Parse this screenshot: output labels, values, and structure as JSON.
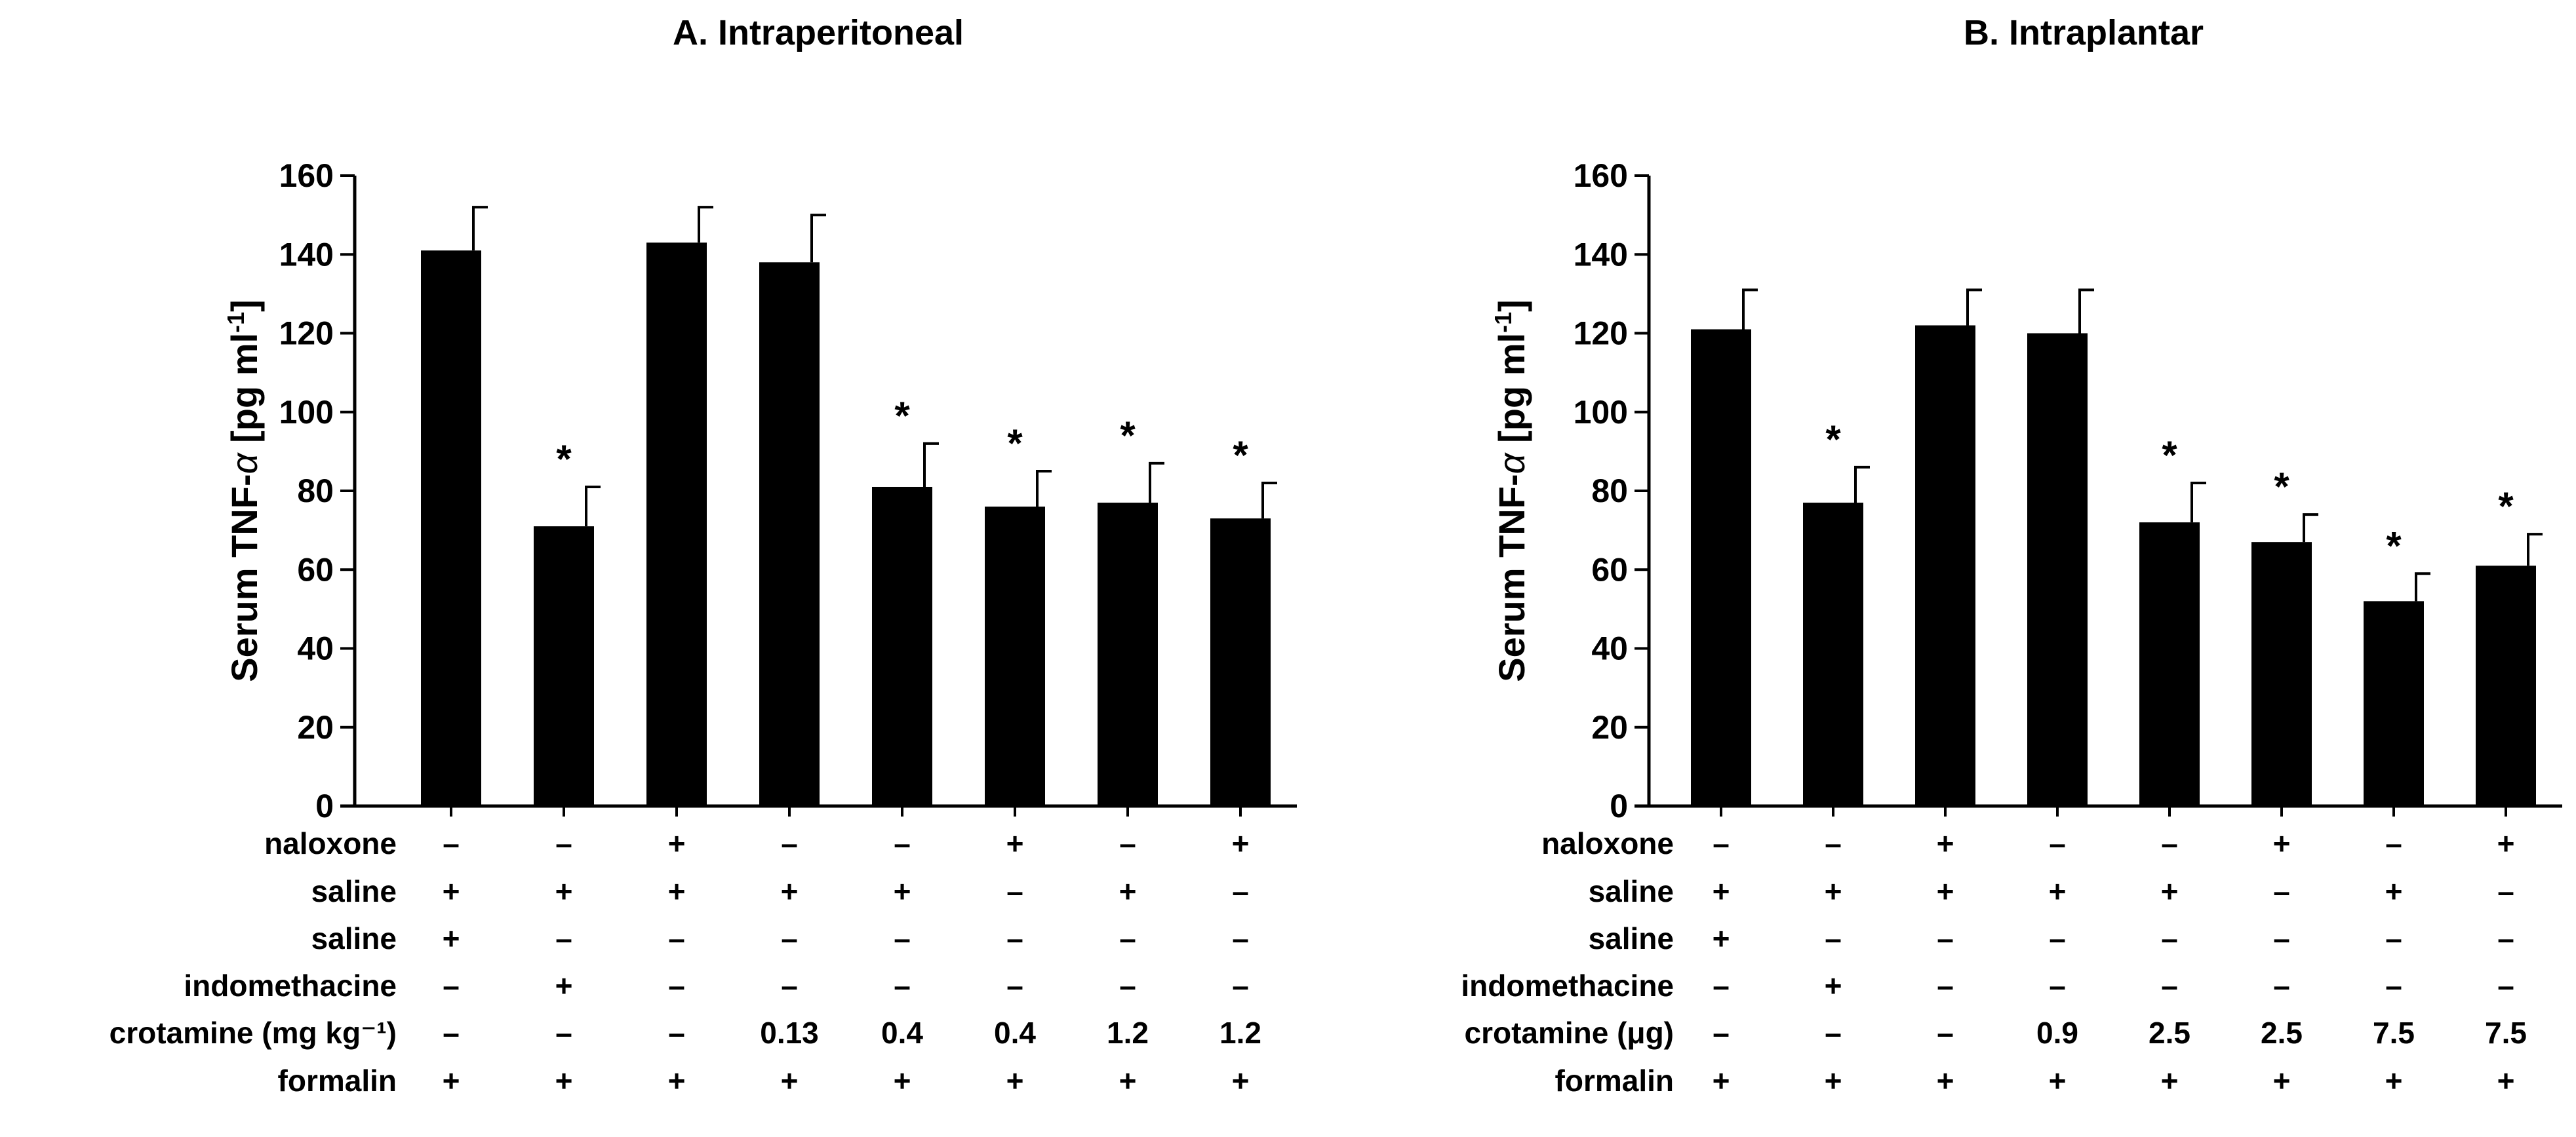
{
  "colors": {
    "bar": "#000000",
    "axis": "#000000",
    "background": "#ffffff"
  },
  "chart_data": [
    {
      "type": "bar",
      "title": "A. Intraperitoneal",
      "ylabel_prefix": "Serum TNF-",
      "ylabel_symbol": "α",
      "ylabel_suffix": " [pg ml",
      "ylabel_sup": "-1",
      "ylabel_close": "]",
      "ylim": [
        0,
        160
      ],
      "yticks": [
        0,
        20,
        40,
        60,
        80,
        100,
        120,
        140,
        160
      ],
      "values": [
        141,
        71,
        143,
        138,
        81,
        76,
        77,
        73
      ],
      "errors": [
        11,
        10,
        9,
        12,
        11,
        9,
        10,
        9
      ],
      "significant": [
        false,
        true,
        false,
        false,
        true,
        true,
        true,
        true
      ],
      "significance_marker": "*",
      "rows": [
        {
          "label": "naloxone",
          "cells": [
            "–",
            "–",
            "+",
            "–",
            "–",
            "+",
            "–",
            "+"
          ]
        },
        {
          "label": "saline",
          "cells": [
            "+",
            "+",
            "+",
            "+",
            "+",
            "–",
            "+",
            "–"
          ]
        },
        {
          "label": "saline",
          "cells": [
            "+",
            "–",
            "–",
            "–",
            "–",
            "–",
            "–",
            "–"
          ]
        },
        {
          "label": "indomethacine",
          "cells": [
            "–",
            "+",
            "–",
            "–",
            "–",
            "–",
            "–",
            "–"
          ]
        },
        {
          "label": "crotamine (mg kg⁻¹)",
          "cells": [
            "–",
            "–",
            "–",
            "0.13",
            "0.4",
            "0.4",
            "1.2",
            "1.2"
          ]
        },
        {
          "label": "formalin",
          "cells": [
            "+",
            "+",
            "+",
            "+",
            "+",
            "+",
            "+",
            "+"
          ]
        }
      ]
    },
    {
      "type": "bar",
      "title": "B. Intraplantar",
      "ylabel_prefix": "Serum TNF-",
      "ylabel_symbol": "α",
      "ylabel_suffix": " [pg ml",
      "ylabel_sup": "-1",
      "ylabel_close": "]",
      "ylim": [
        0,
        160
      ],
      "yticks": [
        0,
        20,
        40,
        60,
        80,
        100,
        120,
        140,
        160
      ],
      "values": [
        121,
        77,
        122,
        120,
        72,
        67,
        52,
        61
      ],
      "errors": [
        10,
        9,
        9,
        11,
        10,
        7,
        7,
        8
      ],
      "significant": [
        false,
        true,
        false,
        false,
        true,
        true,
        true,
        true
      ],
      "significance_marker": "*",
      "rows": [
        {
          "label": "naloxone",
          "cells": [
            "–",
            "–",
            "+",
            "–",
            "–",
            "+",
            "–",
            "+"
          ]
        },
        {
          "label": "saline",
          "cells": [
            "+",
            "+",
            "+",
            "+",
            "+",
            "–",
            "+",
            "–"
          ]
        },
        {
          "label": "saline",
          "cells": [
            "+",
            "–",
            "–",
            "–",
            "–",
            "–",
            "–",
            "–"
          ]
        },
        {
          "label": "indomethacine",
          "cells": [
            "–",
            "+",
            "–",
            "–",
            "–",
            "–",
            "–",
            "–"
          ]
        },
        {
          "label": "crotamine (μg)",
          "cells": [
            "–",
            "–",
            "–",
            "0.9",
            "2.5",
            "2.5",
            "7.5",
            "7.5"
          ]
        },
        {
          "label": "formalin",
          "cells": [
            "+",
            "+",
            "+",
            "+",
            "+",
            "+",
            "+",
            "+"
          ]
        }
      ]
    }
  ]
}
